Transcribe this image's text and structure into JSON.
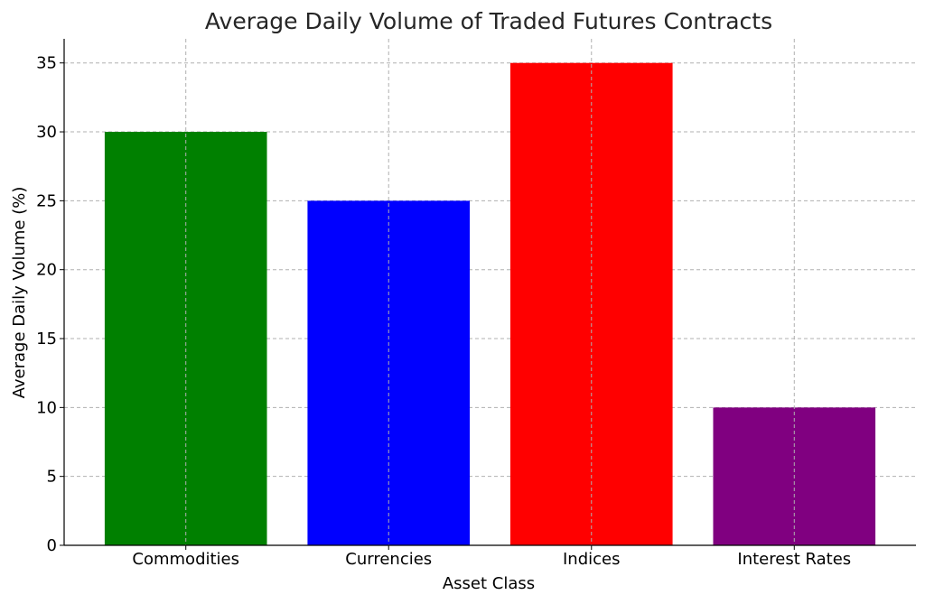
{
  "chart_data": {
    "type": "bar",
    "title": "Average Daily Volume of Traded Futures Contracts",
    "xlabel": "Asset Class",
    "ylabel": "Average Daily Volume (%)",
    "categories": [
      "Commodities",
      "Currencies",
      "Indices",
      "Interest Rates"
    ],
    "values": [
      30,
      25,
      35,
      10
    ],
    "colors": [
      "#008000",
      "#0000ff",
      "#ff0000",
      "#800080"
    ],
    "ylim": [
      0,
      36.75
    ],
    "yticks": [
      0,
      5,
      10,
      15,
      20,
      25,
      30,
      35
    ],
    "grid": true,
    "legend": "none"
  }
}
